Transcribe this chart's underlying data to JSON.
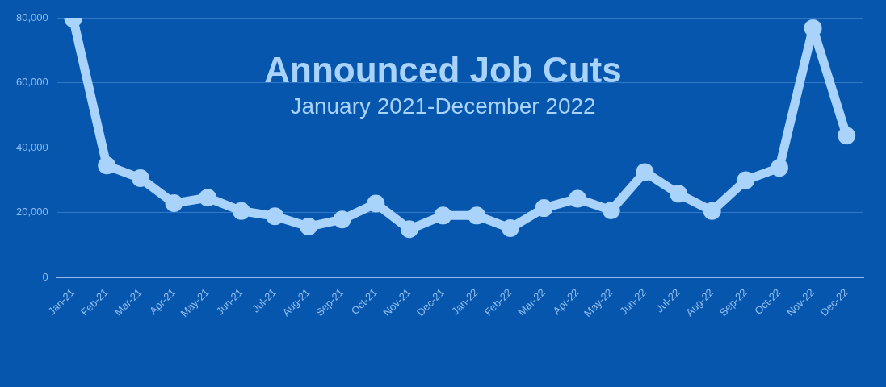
{
  "chart_data": {
    "type": "line",
    "title": "Announced Job Cuts",
    "subtitle": "January 2021-December 2022",
    "categories": [
      "Jan-21",
      "Feb-21",
      "Mar-21",
      "Apr-21",
      "May-21",
      "Jun-21",
      "Jul-21",
      "Aug-21",
      "Sep-21",
      "Oct-21",
      "Nov-21",
      "Dec-21",
      "Jan-22",
      "Feb-22",
      "Mar-22",
      "Apr-22",
      "May-22",
      "Jun-22",
      "Jul-22",
      "Aug-22",
      "Sep-22",
      "Oct-22",
      "Nov-22",
      "Dec-22"
    ],
    "series": [
      {
        "color": "#a9d3fb",
        "values": [
          79700,
          34500,
          30600,
          22900,
          24600,
          20500,
          18900,
          15700,
          17900,
          22800,
          14900,
          19100,
          19100,
          15200,
          21400,
          24300,
          20700,
          32500,
          25800,
          20500,
          30000,
          33800,
          76800,
          43700
        ]
      }
    ],
    "ylim": [
      0,
      80000
    ],
    "yticks": [
      0,
      {
        "value": 20000,
        "label": "20,000"
      },
      {
        "value": 40000,
        "label": "40,000"
      },
      {
        "value": 60000,
        "label": "60,000"
      },
      {
        "value": 80000,
        "label": "80,000"
      }
    ],
    "grid": "y",
    "legend": false,
    "marker": "circle",
    "line_style": "solid"
  }
}
